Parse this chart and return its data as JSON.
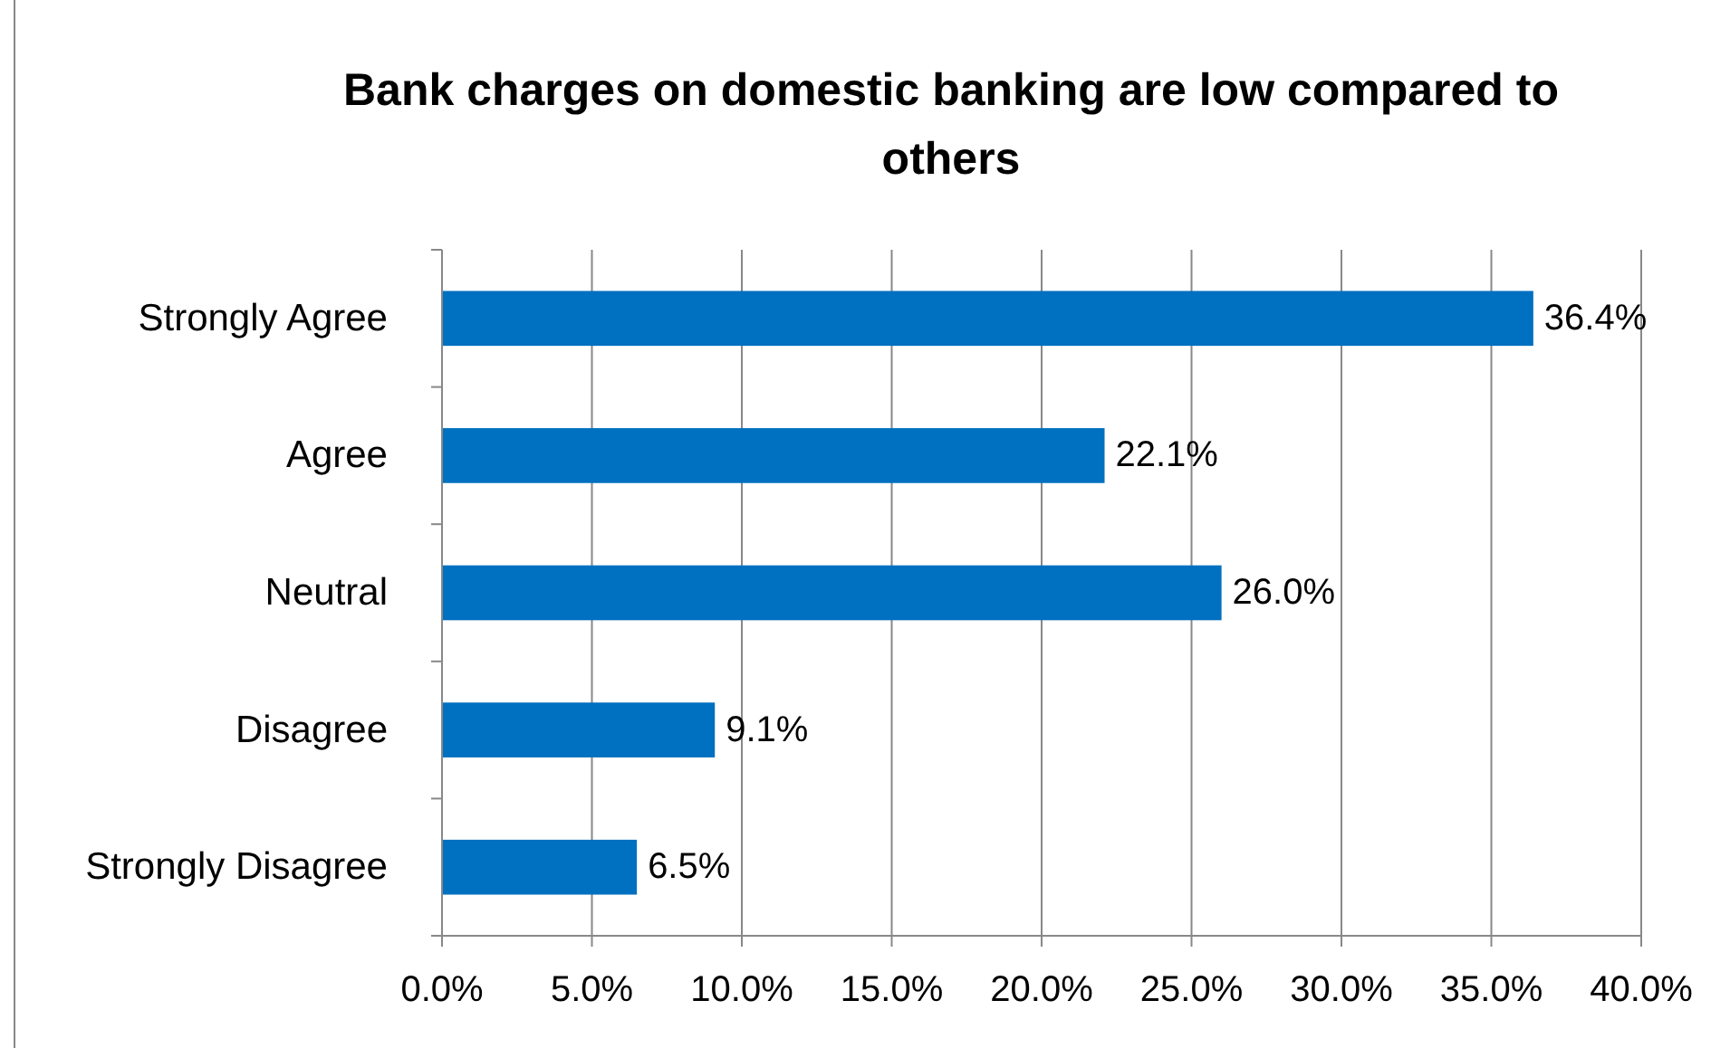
{
  "chart_data": {
    "type": "bar",
    "orientation": "horizontal",
    "title": "Bank charges on domestic banking are low compared to others",
    "categories": [
      "Strongly Agree",
      "Agree",
      "Neutral",
      "Disagree",
      "Strongly Disagree"
    ],
    "values": [
      36.4,
      22.1,
      26.0,
      9.1,
      6.5
    ],
    "value_labels": [
      "36.4%",
      "22.1%",
      "26.0%",
      "9.1%",
      "6.5%"
    ],
    "color": "#0070c0",
    "xlim": [
      0,
      40
    ],
    "xticks": [
      {
        "value": 0,
        "label": "0.0%"
      },
      {
        "value": 5,
        "label": "5.0%"
      },
      {
        "value": 10,
        "label": "10.0%"
      },
      {
        "value": 15,
        "label": "15.0%"
      },
      {
        "value": 20,
        "label": "20.0%"
      },
      {
        "value": 25,
        "label": "25.0%"
      },
      {
        "value": 30,
        "label": "30.0%"
      },
      {
        "value": 35,
        "label": "35.0%"
      },
      {
        "value": 40,
        "label": "40.0%"
      }
    ],
    "grid": "x"
  }
}
